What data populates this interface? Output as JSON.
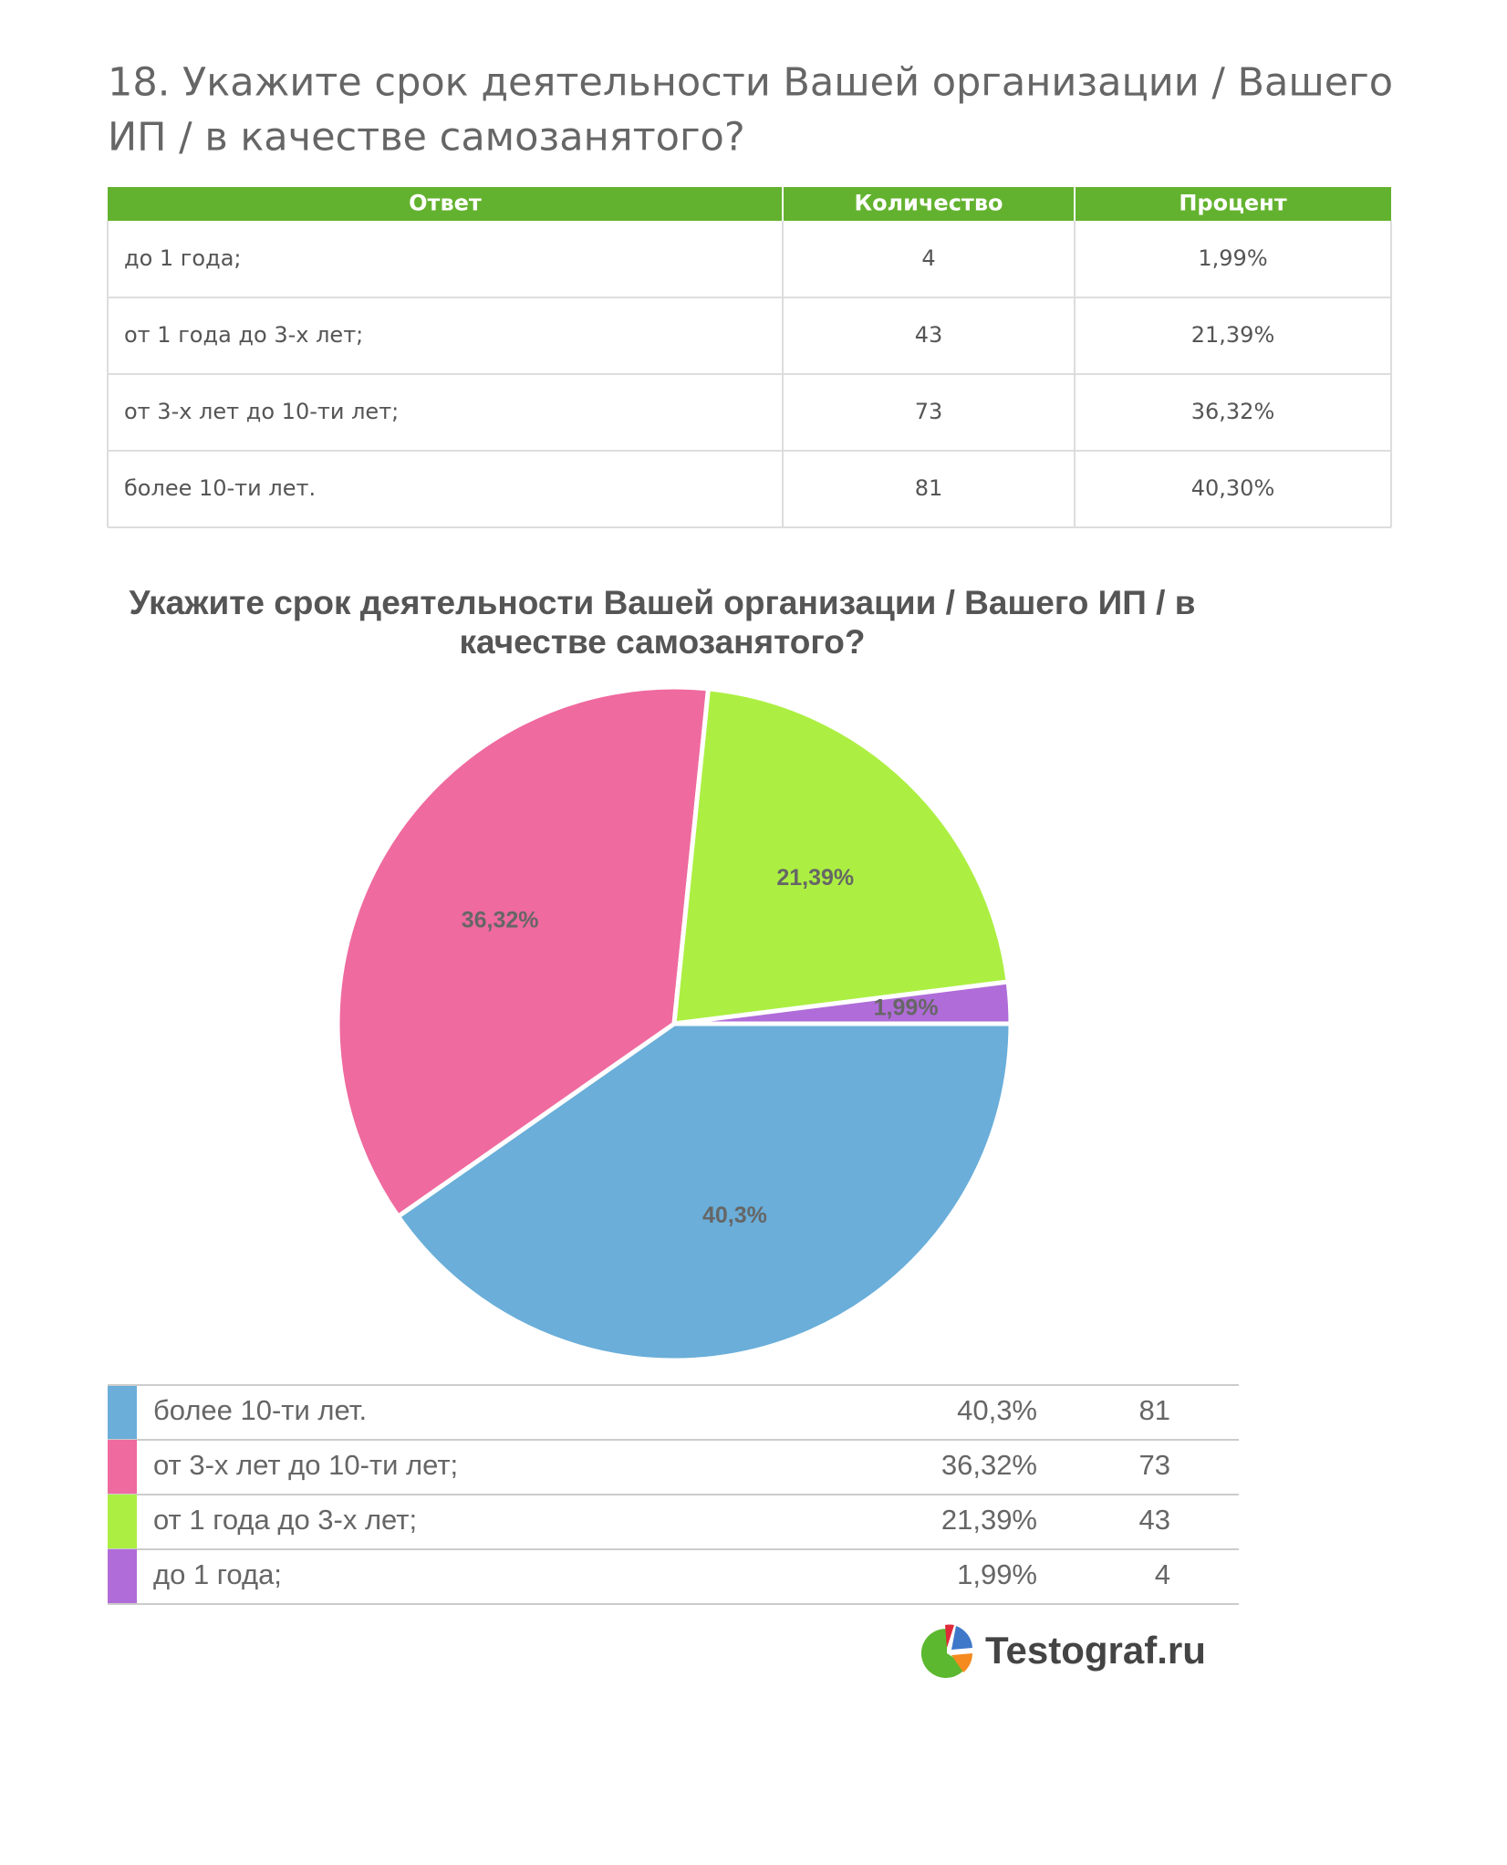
{
  "heading": [
    "18. Укажите срок деятельности Вашей организации / Вашего",
    "ИП / в качестве самозанятого?"
  ],
  "table": {
    "header": [
      "Ответ",
      "Количество",
      "Процент"
    ],
    "rows": [
      [
        "до 1 года;",
        "4",
        "1,99%"
      ],
      [
        "от 1 года до 3-х лет;",
        "43",
        "21,39%"
      ],
      [
        "от 3-х лет до 10-ти лет;",
        "73",
        "36,32%"
      ],
      [
        "более 10-ти лет.",
        "81",
        "40,30%"
      ]
    ]
  },
  "chart_data": {
    "type": "pie",
    "title": [
      "Укажите срок деятельности Вашей организации / Вашего ИП / в",
      "качестве самозанятого?"
    ],
    "categories": [
      "более 10-ти лет.",
      "от 3-х лет до 10-ти лет;",
      "от 1 года до 3-х лет;",
      "до 1 года;"
    ],
    "values": [
      40.3,
      36.32,
      21.39,
      1.99
    ],
    "value_labels": [
      "40,3%",
      "36,32%",
      "21,39%",
      "1,99%"
    ],
    "counts": [
      81,
      73,
      43,
      4
    ],
    "colors": [
      "#6aaed9",
      "#ef6a9f",
      "#acef42",
      "#b06cd8"
    ]
  },
  "logo": {
    "text": "Testograf.ru"
  }
}
